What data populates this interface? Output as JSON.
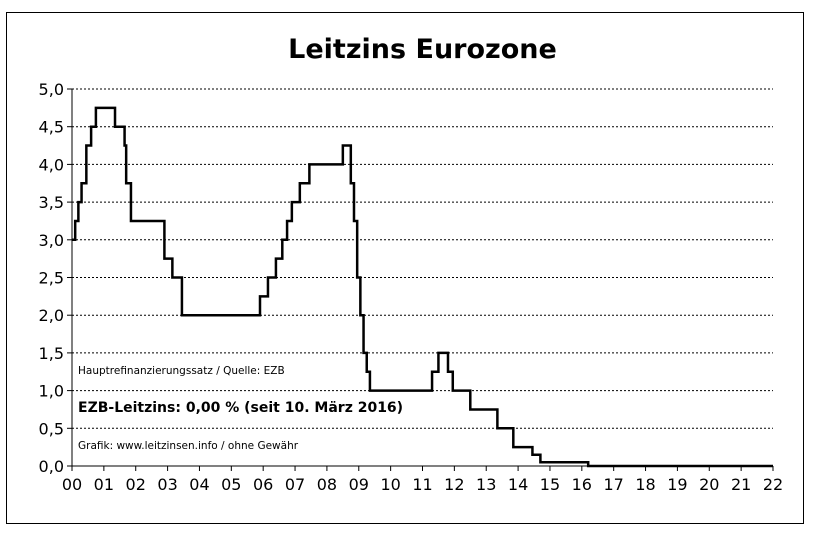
{
  "chart_data": {
    "type": "line",
    "step": true,
    "title": "Leitzins Eurozone",
    "xlabel": "",
    "ylabel": "",
    "xlim": [
      0,
      22
    ],
    "ylim": [
      0,
      5
    ],
    "x_tick_labels": [
      "00",
      "01",
      "02",
      "03",
      "04",
      "05",
      "06",
      "07",
      "08",
      "09",
      "10",
      "11",
      "12",
      "13",
      "14",
      "15",
      "16",
      "17",
      "18",
      "19",
      "20",
      "21",
      "22"
    ],
    "y_tick_values": [
      0,
      0.5,
      1,
      1.5,
      2,
      2.5,
      3,
      3.5,
      4,
      4.5,
      5
    ],
    "y_tick_labels": [
      "0,0",
      "0,5",
      "1,0",
      "1,5",
      "2,0",
      "2,5",
      "3,0",
      "3,5",
      "4,0",
      "4,5",
      "5,0"
    ],
    "grid": {
      "horizontal": true,
      "style": "dotted"
    },
    "line_color": "#000000",
    "series": [
      {
        "points": [
          [
            0.0,
            3.0
          ],
          [
            0.1,
            3.25
          ],
          [
            0.2,
            3.5
          ],
          [
            0.3,
            3.75
          ],
          [
            0.45,
            4.25
          ],
          [
            0.6,
            4.5
          ],
          [
            0.75,
            4.75
          ],
          [
            1.35,
            4.5
          ],
          [
            1.65,
            4.25
          ],
          [
            1.7,
            3.75
          ],
          [
            1.85,
            3.25
          ],
          [
            2.9,
            2.75
          ],
          [
            3.15,
            2.5
          ],
          [
            3.45,
            2.0
          ],
          [
            5.9,
            2.25
          ],
          [
            6.15,
            2.5
          ],
          [
            6.4,
            2.75
          ],
          [
            6.6,
            3.0
          ],
          [
            6.75,
            3.25
          ],
          [
            6.9,
            3.5
          ],
          [
            7.15,
            3.75
          ],
          [
            7.45,
            4.0
          ],
          [
            8.5,
            4.25
          ],
          [
            8.75,
            3.75
          ],
          [
            8.85,
            3.25
          ],
          [
            8.95,
            2.5
          ],
          [
            9.05,
            2.0
          ],
          [
            9.15,
            1.5
          ],
          [
            9.25,
            1.25
          ],
          [
            9.35,
            1.0
          ],
          [
            11.3,
            1.25
          ],
          [
            11.5,
            1.5
          ],
          [
            11.8,
            1.25
          ],
          [
            11.95,
            1.0
          ],
          [
            12.5,
            0.75
          ],
          [
            13.35,
            0.5
          ],
          [
            13.85,
            0.25
          ],
          [
            14.45,
            0.15
          ],
          [
            14.7,
            0.05
          ],
          [
            16.2,
            0.0
          ],
          [
            22.0,
            0.0
          ]
        ]
      }
    ]
  },
  "notes": {
    "source": "Hauptrefinanzierungssatz / Quelle: EZB",
    "rate": "EZB-Leitzins: 0,00 % (seit 10. März 2016)",
    "credit": "Grafik: www.leitzinsen.info / ohne Gewähr"
  }
}
